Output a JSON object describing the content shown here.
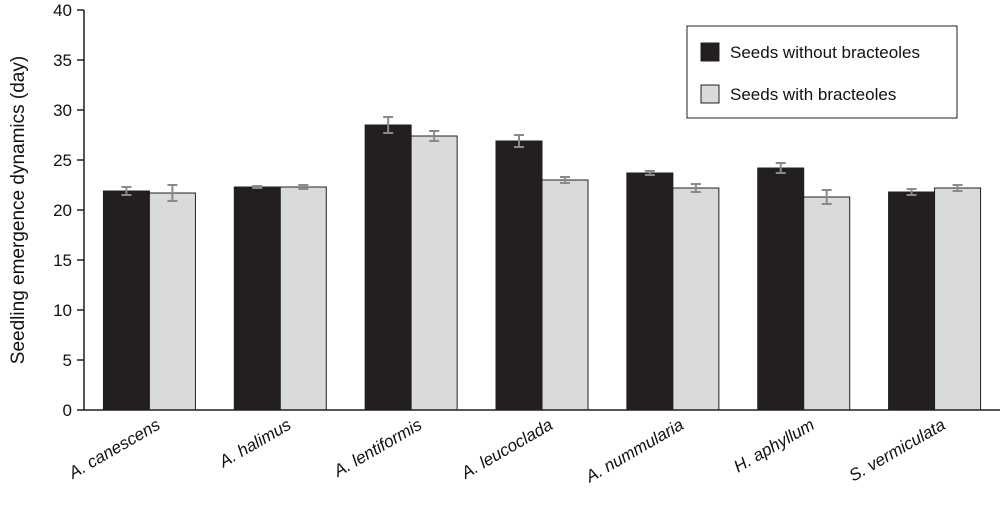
{
  "chart_data": {
    "type": "bar",
    "title": "",
    "xlabel": "",
    "ylabel": "Seedling emergence dynamics (day)",
    "ylim": [
      0,
      40
    ],
    "yticks": [
      0,
      5,
      10,
      15,
      20,
      25,
      30,
      35,
      40
    ],
    "categories": [
      "A. canescens",
      "A. halimus",
      "A. lentiformis",
      "A. leucoclada",
      "A. nummularia",
      "H. aphyllum",
      "S. vermiculata"
    ],
    "series": [
      {
        "name": "Seeds without bracteoles",
        "color": "#231f20",
        "values": [
          21.9,
          22.3,
          28.5,
          26.9,
          23.7,
          24.2,
          21.8
        ],
        "errors": [
          0.4,
          0.1,
          0.8,
          0.6,
          0.2,
          0.5,
          0.3
        ]
      },
      {
        "name": "Seeds with bracteoles",
        "color": "#d9dadc",
        "values": [
          21.7,
          22.3,
          27.4,
          23.0,
          22.2,
          21.3,
          22.2
        ],
        "errors": [
          0.8,
          0.2,
          0.5,
          0.3,
          0.4,
          0.7,
          0.3
        ]
      }
    ],
    "legend_position": "top-right",
    "grid": false
  }
}
